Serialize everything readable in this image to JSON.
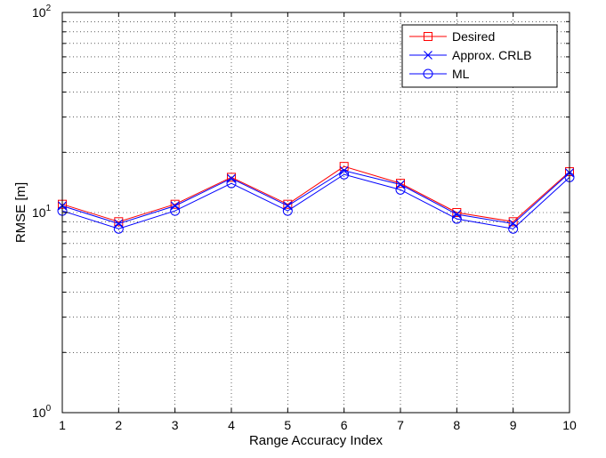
{
  "chart_data": {
    "type": "line",
    "title": "",
    "xlabel": "Range Accuracy Index",
    "ylabel": "RMSE [m]",
    "x": [
      1,
      2,
      3,
      4,
      5,
      6,
      7,
      8,
      9,
      10
    ],
    "xlim": [
      1,
      10
    ],
    "ylim": [
      1,
      100
    ],
    "yscale": "log",
    "grid": true,
    "legend_position": "top-right",
    "x_ticks": [
      "1",
      "2",
      "3",
      "4",
      "5",
      "6",
      "7",
      "8",
      "9",
      "10"
    ],
    "y_ticks": [
      {
        "base": "10",
        "exp": "0",
        "value": 1
      },
      {
        "base": "10",
        "exp": "1",
        "value": 10
      },
      {
        "base": "10",
        "exp": "2",
        "value": 100
      }
    ],
    "series": [
      {
        "name": "Desired",
        "color": "#ff0000",
        "marker": "square",
        "values": [
          11,
          9,
          11,
          15,
          11,
          17,
          14,
          10,
          9,
          16
        ]
      },
      {
        "name": "Approx. CRLB",
        "color": "#0000ff",
        "marker": "x",
        "values": [
          10.8,
          8.8,
          10.8,
          14.8,
          10.8,
          16.2,
          13.8,
          9.8,
          8.8,
          15.8
        ]
      },
      {
        "name": "ML",
        "color": "#0000ff",
        "marker": "circle",
        "values": [
          10.2,
          8.3,
          10.2,
          14.0,
          10.2,
          15.5,
          13.0,
          9.3,
          8.3,
          15.0
        ]
      }
    ]
  }
}
